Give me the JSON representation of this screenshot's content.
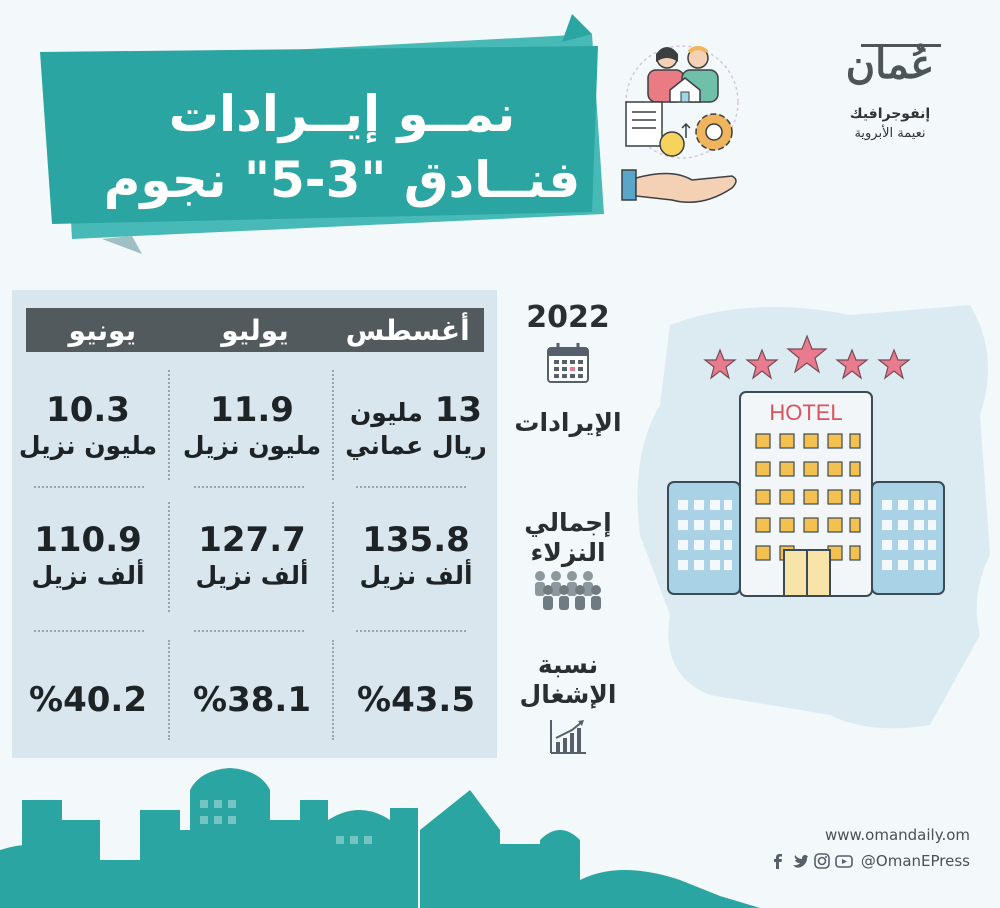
{
  "title": {
    "line1": "نمــو إيــرادات",
    "line2": "فنــادق \"3-5\" نجوم"
  },
  "logo": {
    "mark": "عُمان",
    "section": "إنفوجرافيك",
    "author": "نعيمة الأبروية"
  },
  "year": "2022",
  "hotel_sign": "HOTEL",
  "columns": [
    "أغسطس",
    "يوليو",
    "يونيو"
  ],
  "rows": {
    "revenue": {
      "label": "الإيرادات",
      "icon": "calendar-icon",
      "cells": [
        {
          "value": "13",
          "unit_inline": "مليون",
          "unit": "ريال عماني"
        },
        {
          "value": "11.9",
          "unit": "مليون نزيل"
        },
        {
          "value": "10.3",
          "unit": "مليون نزيل"
        }
      ]
    },
    "guests": {
      "label_line1": "إجمالي",
      "label_line2": "النزلاء",
      "icon": "people-icon",
      "cells": [
        {
          "value": "135.8",
          "unit": "ألف نزيل"
        },
        {
          "value": "127.7",
          "unit": "ألف نزيل"
        },
        {
          "value": "110.9",
          "unit": "ألف نزيل"
        }
      ]
    },
    "occupancy": {
      "label_line1": "نسبة",
      "label_line2": "الإشغال",
      "icon": "bar-chart-icon",
      "cells": [
        {
          "value": "%43.5"
        },
        {
          "value": "%38.1"
        },
        {
          "value": "%40.2"
        }
      ]
    }
  },
  "footer": {
    "url": "www.omandaily.om",
    "handle": "@OmanEPress",
    "social_icons": [
      "facebook-icon",
      "twitter-icon",
      "instagram-icon",
      "youtube-icon"
    ]
  },
  "colors": {
    "teal": "#2aa5a2",
    "teal_dark": "#1f8c8a",
    "panel": "#d9e6ee",
    "header": "#535a5e",
    "star": "#e87c8e"
  }
}
